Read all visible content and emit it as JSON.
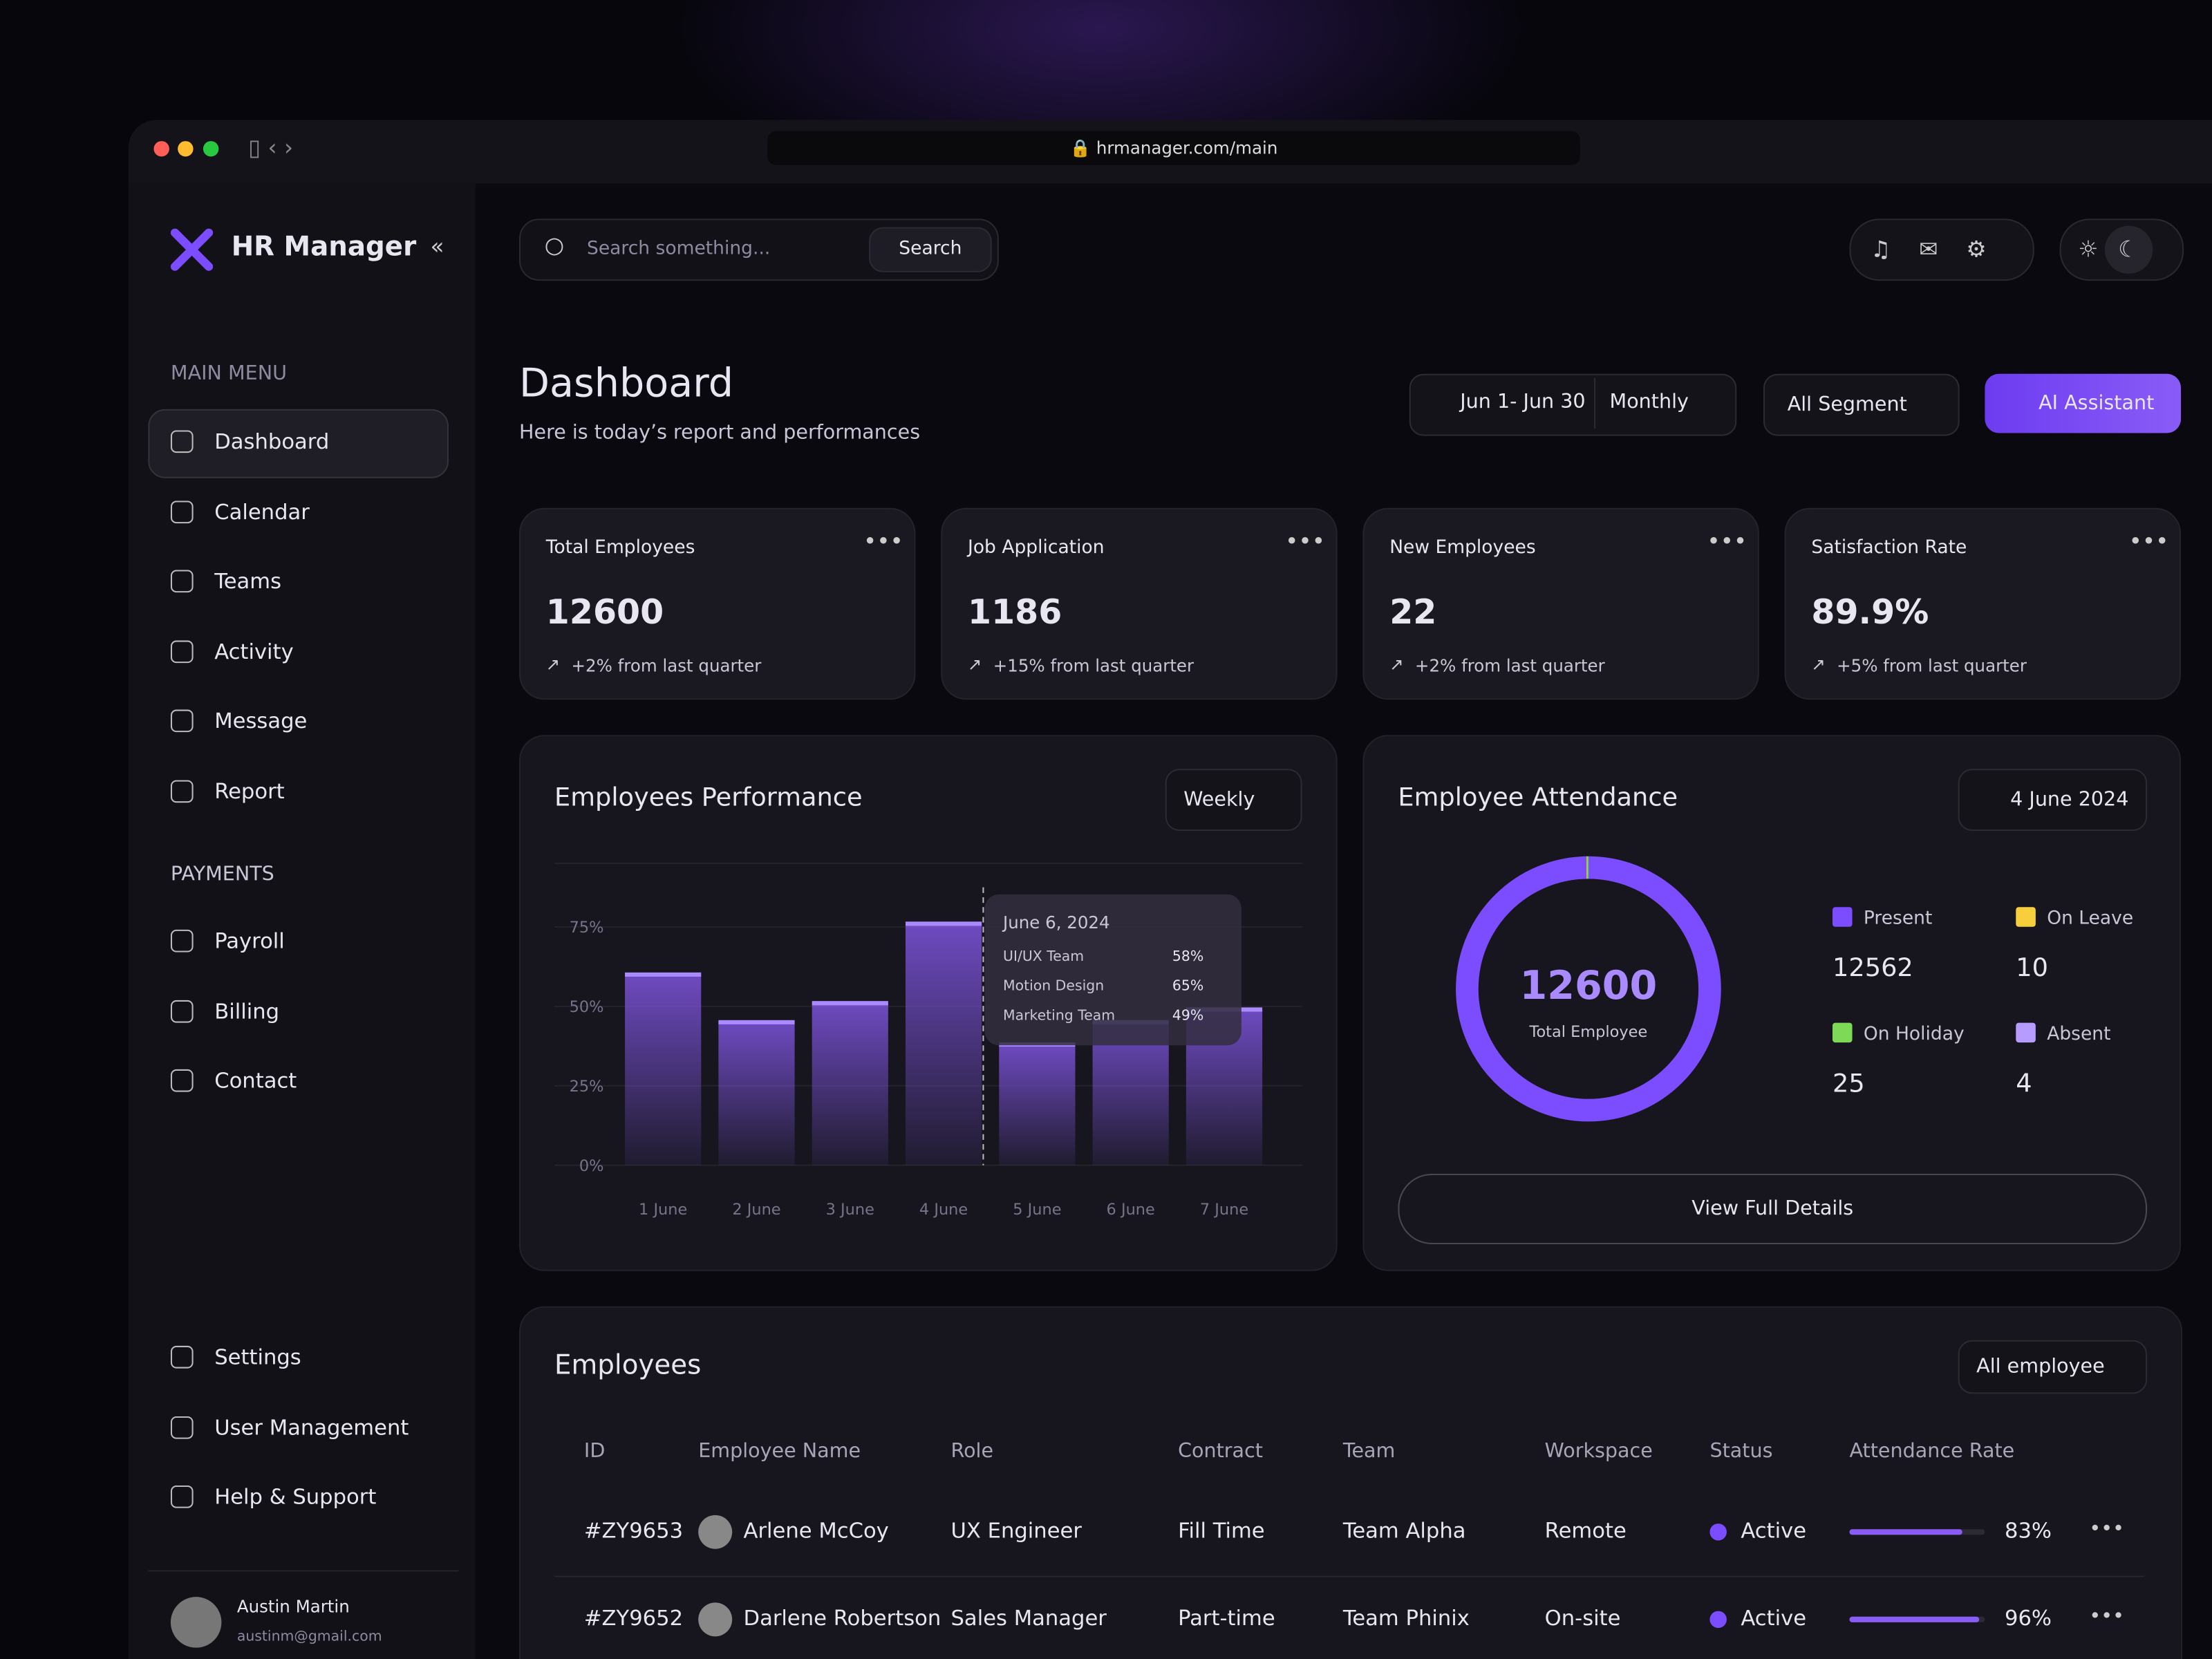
{
  "browser": {
    "url": "hrmanager.com/main"
  },
  "sidebar": {
    "brand": "HR Manager",
    "main_menu_label": "MAIN MENU",
    "main_menu": [
      "Dashboard",
      "Calendar",
      "Teams",
      "Activity",
      "Message",
      "Report"
    ],
    "payments_label": "PAYMENTS",
    "payments": [
      "Payroll",
      "Billing",
      "Contact"
    ],
    "bottom": [
      "Settings",
      "User Management",
      "Help & Support"
    ],
    "user": {
      "name": "Austin Martin",
      "email": "austinm@gmail.com"
    }
  },
  "topbar": {
    "search_placeholder": "Search something...",
    "search_button": "Search"
  },
  "header": {
    "title": "Dashboard",
    "subtitle": "Here is today’s report and performances",
    "date_range": "Jun 1- Jun 30",
    "period": "Monthly",
    "segment": "All Segment",
    "ai_button": "AI Assistant"
  },
  "stats": [
    {
      "label": "Total Employees",
      "value": "12600",
      "change": "+2% from last quarter"
    },
    {
      "label": "Job Application",
      "value": "1186",
      "change": "+15% from last quarter"
    },
    {
      "label": "New Employees",
      "value": "22",
      "change": "+2% from last quarter"
    },
    {
      "label": "Satisfaction Rate",
      "value": "89.9%",
      "change": "+5% from last quarter"
    }
  ],
  "performance": {
    "title": "Employees Performance",
    "period": "Weekly",
    "chart": {
      "type": "bar",
      "categories": [
        "1 June",
        "2 June",
        "3 June",
        "4 June",
        "5 June",
        "6 June",
        "7 June"
      ],
      "values": [
        60,
        45,
        51,
        76,
        38,
        45,
        49
      ],
      "color": "#8a5cf6",
      "ylim": [
        0,
        95
      ],
      "yticks": [
        {
          "value": 0,
          "label": "0%"
        },
        {
          "value": 25,
          "label": "25%"
        },
        {
          "value": 50,
          "label": "50%"
        },
        {
          "value": 75,
          "label": "75%"
        }
      ]
    },
    "tooltip": {
      "date": "June 6, 2024",
      "rows": [
        [
          "UI/UX Team",
          "58%"
        ],
        [
          "Motion Design",
          "65%"
        ],
        [
          "Marketing Team",
          "49%"
        ]
      ]
    }
  },
  "attendance": {
    "title": "Employee Attendance",
    "date": "4 June 2024",
    "total": "12600",
    "total_label": "Total Employee",
    "chart": {
      "type": "pie",
      "categories": [
        "Present",
        "On Leave",
        "On Holiday",
        "Absent"
      ],
      "values": [
        12562,
        10,
        25,
        4
      ],
      "colors": [
        "#7c4dff",
        "#f7cf3c",
        "#7ed957",
        "#b69cff"
      ]
    },
    "button": "View Full Details"
  },
  "employees": {
    "title": "Employees",
    "filter": "All employee",
    "columns": [
      "ID",
      "Employee Name",
      "Role",
      "Contract",
      "Team",
      "Workspace",
      "Status",
      "Attendance Rate"
    ],
    "rows": [
      {
        "id": "#ZY9653",
        "name": "Arlene McCoy",
        "role": "UX Engineer",
        "contract": "Fill Time",
        "team": "Team Alpha",
        "workspace": "Remote",
        "status": "Active",
        "attendance_rate": 83,
        "attendance_label": "83%"
      },
      {
        "id": "#ZY9652",
        "name": "Darlene Robertson",
        "role": "Sales Manager",
        "contract": "Part-time",
        "team": "Team Phinix",
        "workspace": "On-site",
        "status": "Active",
        "attendance_rate": 96,
        "attendance_label": "96%"
      }
    ]
  }
}
